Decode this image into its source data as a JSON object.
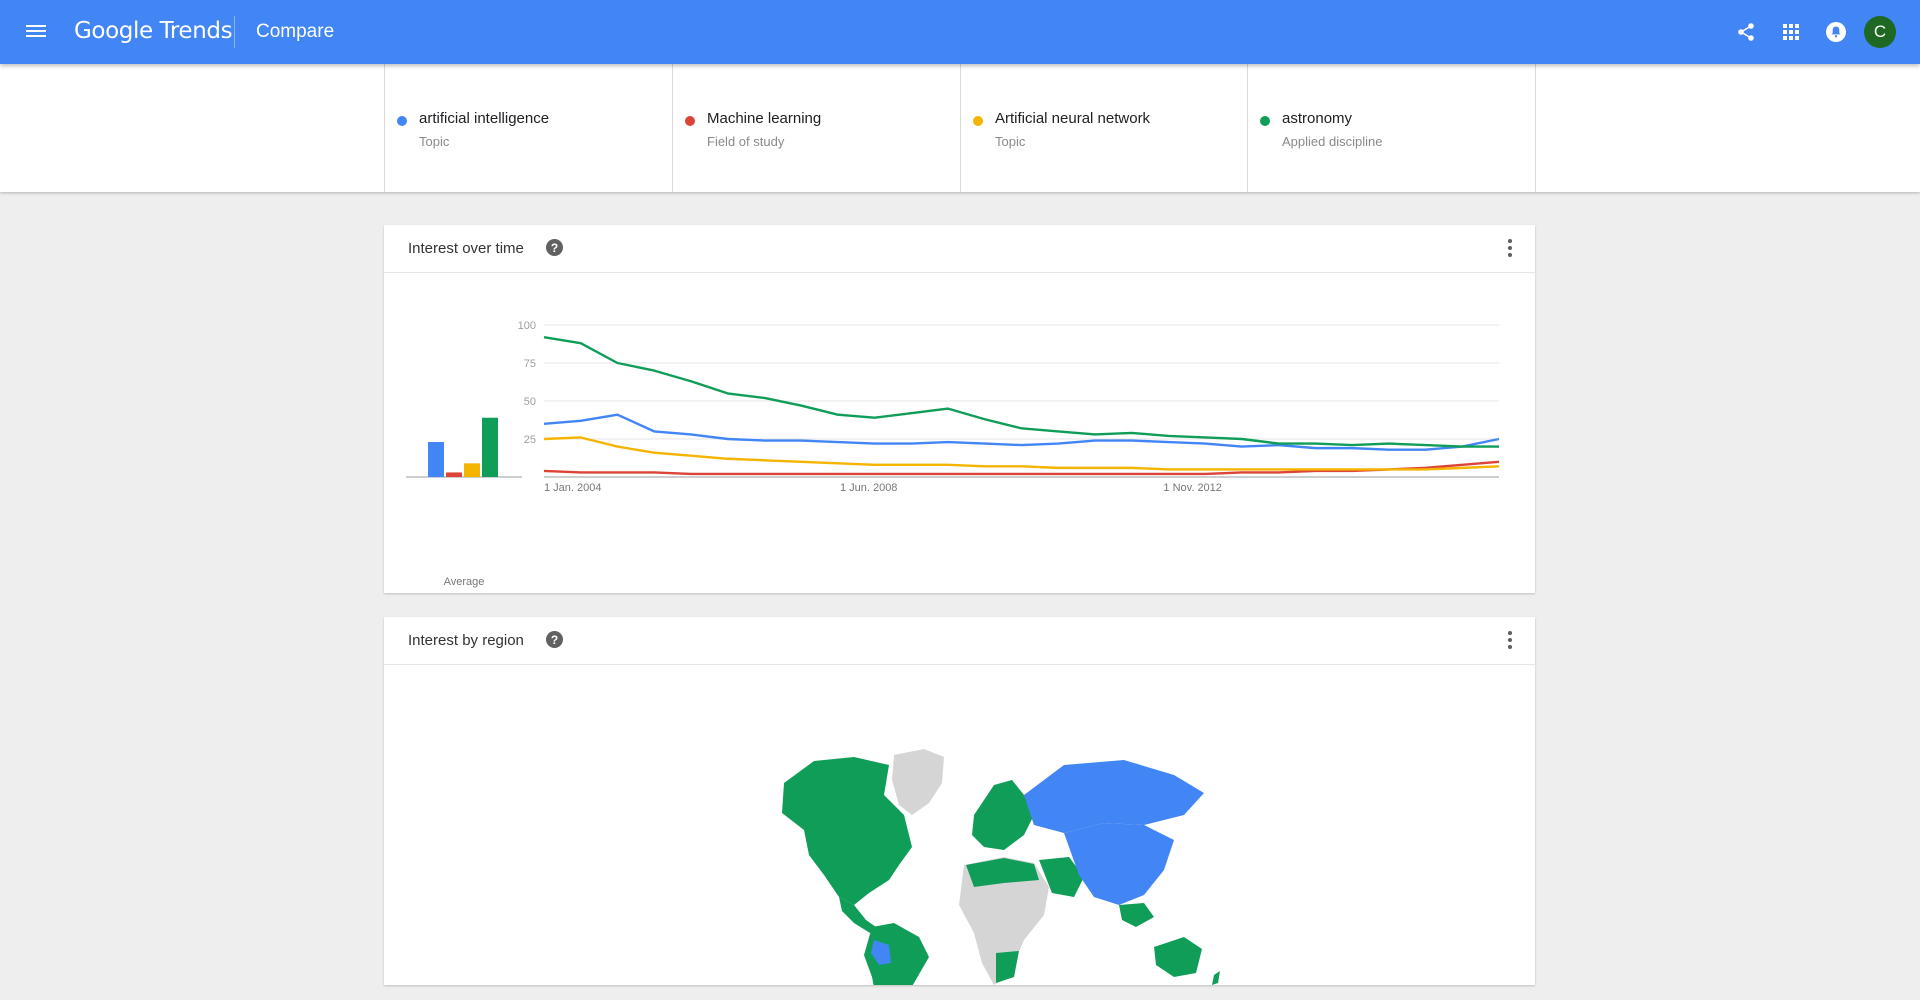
{
  "app": {
    "logo_text": "Google Trends",
    "page_title": "Compare",
    "user_initial": "C"
  },
  "icons": {
    "menu": "menu-icon",
    "share": "share-icon",
    "apps": "apps-grid-icon",
    "notifications": "notifications-icon"
  },
  "terms": [
    {
      "name": "artificial intelligence",
      "type": "Topic",
      "color": "#4285f4"
    },
    {
      "name": "Machine learning",
      "type": "Field of study",
      "color": "#db4437"
    },
    {
      "name": "Artificial neural network",
      "type": "Topic",
      "color": "#f4b400"
    },
    {
      "name": "astronomy",
      "type": "Applied discipline",
      "color": "#0f9d58"
    }
  ],
  "interest_over_time": {
    "title": "Interest over time",
    "help": "?",
    "average_label": "Average"
  },
  "interest_by_region": {
    "title": "Interest by region",
    "help": "?"
  },
  "chart_data": {
    "type": "line",
    "title": "Interest over time",
    "x_ticks": [
      "1 Jan. 2004",
      "1 Jun. 2008",
      "1 Nov. 2012"
    ],
    "y_ticks": [
      25,
      50,
      75,
      100
    ],
    "ylim": [
      0,
      100
    ],
    "x_range": [
      "2004-01",
      "2017-03"
    ],
    "grid": true,
    "averages": [
      {
        "name": "artificial intelligence",
        "value": 23
      },
      {
        "name": "Machine learning",
        "value": 3
      },
      {
        "name": "Artificial neural network",
        "value": 9
      },
      {
        "name": "astronomy",
        "value": 39
      }
    ],
    "x": [
      2004.0,
      2004.5,
      2005.0,
      2005.5,
      2006.0,
      2006.5,
      2007.0,
      2007.5,
      2008.0,
      2008.5,
      2009.0,
      2009.5,
      2010.0,
      2010.5,
      2011.0,
      2011.5,
      2012.0,
      2012.5,
      2013.0,
      2013.5,
      2014.0,
      2014.5,
      2015.0,
      2015.5,
      2016.0,
      2016.5,
      2017.0
    ],
    "series": [
      {
        "name": "artificial intelligence",
        "color": "#4285f4",
        "values": [
          35,
          37,
          41,
          30,
          28,
          25,
          24,
          24,
          23,
          22,
          22,
          23,
          22,
          21,
          22,
          24,
          24,
          23,
          22,
          20,
          21,
          19,
          19,
          18,
          18,
          20,
          25
        ]
      },
      {
        "name": "Machine learning",
        "color": "#db4437",
        "values": [
          4,
          3,
          3,
          3,
          2,
          2,
          2,
          2,
          2,
          2,
          2,
          2,
          2,
          2,
          2,
          2,
          2,
          2,
          2,
          3,
          3,
          4,
          4,
          5,
          6,
          8,
          10
        ]
      },
      {
        "name": "Artificial neural network",
        "color": "#f4b400",
        "values": [
          25,
          26,
          20,
          16,
          14,
          12,
          11,
          10,
          9,
          8,
          8,
          8,
          7,
          7,
          6,
          6,
          6,
          5,
          5,
          5,
          5,
          5,
          5,
          5,
          5,
          6,
          7
        ]
      },
      {
        "name": "astronomy",
        "color": "#0f9d58",
        "values": [
          92,
          88,
          75,
          70,
          63,
          55,
          52,
          47,
          41,
          39,
          42,
          45,
          38,
          32,
          30,
          28,
          29,
          27,
          26,
          25,
          22,
          22,
          21,
          22,
          21,
          20,
          20
        ]
      }
    ]
  }
}
